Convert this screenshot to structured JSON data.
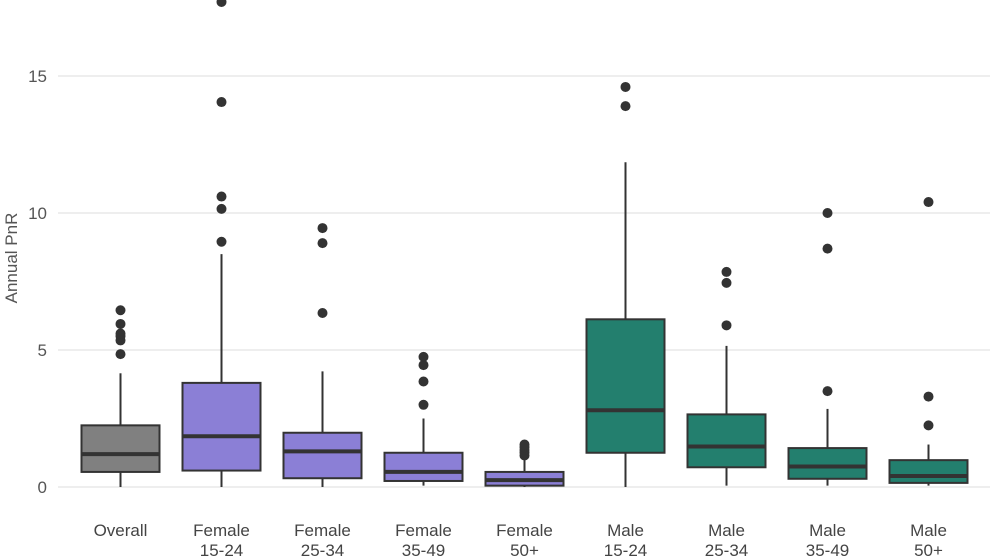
{
  "chart_data": {
    "type": "boxplot",
    "title": "",
    "xlabel": "",
    "ylabel": "Annual PnR",
    "ylim": [
      -0.3,
      17.8
    ],
    "yticks": [
      0,
      5,
      10,
      15
    ],
    "ytick_labels": [
      "0",
      "5",
      "10",
      "15"
    ],
    "grid": true,
    "colors": {
      "gray": "#808080",
      "purple": "#8B7FD6",
      "teal": "#237F6E",
      "edge": "#333333",
      "grid": "#dddddd"
    },
    "categories": [
      {
        "label_line1": "Overall",
        "label_line2": "",
        "color": "gray",
        "whisker_low": 0.0,
        "q1": 0.55,
        "median": 1.2,
        "q3": 2.25,
        "whisker_high": 4.15,
        "outliers": [
          4.85,
          5.35,
          5.5,
          5.6,
          5.95,
          6.45
        ]
      },
      {
        "label_line1": "Female",
        "label_line2": "15-24",
        "color": "purple",
        "whisker_low": 0.0,
        "q1": 0.6,
        "median": 1.85,
        "q3": 3.8,
        "whisker_high": 8.5,
        "outliers": [
          8.95,
          10.15,
          10.6,
          14.05,
          17.7
        ]
      },
      {
        "label_line1": "Female",
        "label_line2": "25-34",
        "color": "purple",
        "whisker_low": 0.0,
        "q1": 0.32,
        "median": 1.3,
        "q3": 1.98,
        "whisker_high": 4.22,
        "outliers": [
          6.35,
          8.9,
          9.45
        ]
      },
      {
        "label_line1": "Female",
        "label_line2": "35-49",
        "color": "purple",
        "whisker_low": 0.05,
        "q1": 0.22,
        "median": 0.55,
        "q3": 1.25,
        "whisker_high": 2.5,
        "outliers": [
          3.0,
          3.85,
          4.45,
          4.75
        ]
      },
      {
        "label_line1": "Female",
        "label_line2": "50+",
        "color": "purple",
        "whisker_low": 0.0,
        "q1": 0.05,
        "median": 0.25,
        "q3": 0.55,
        "whisker_high": 1.0,
        "outliers": [
          1.15,
          1.25,
          1.35,
          1.45,
          1.55
        ]
      },
      {
        "label_line1": "Male",
        "label_line2": "15-24",
        "color": "teal",
        "whisker_low": 0.0,
        "q1": 1.25,
        "median": 2.8,
        "q3": 6.12,
        "whisker_high": 11.85,
        "outliers": [
          13.9,
          14.6
        ]
      },
      {
        "label_line1": "Male",
        "label_line2": "25-34",
        "color": "teal",
        "whisker_low": 0.05,
        "q1": 0.72,
        "median": 1.48,
        "q3": 2.65,
        "whisker_high": 5.15,
        "outliers": [
          5.9,
          7.45,
          7.85
        ]
      },
      {
        "label_line1": "Male",
        "label_line2": "35-49",
        "color": "teal",
        "whisker_low": 0.05,
        "q1": 0.3,
        "median": 0.75,
        "q3": 1.42,
        "whisker_high": 2.85,
        "outliers": [
          3.5,
          8.7,
          10.0
        ]
      },
      {
        "label_line1": "Male",
        "label_line2": "50+",
        "color": "teal",
        "whisker_low": 0.05,
        "q1": 0.15,
        "median": 0.4,
        "q3": 0.98,
        "whisker_high": 1.55,
        "outliers": [
          2.25,
          3.3,
          10.4
        ]
      }
    ]
  }
}
